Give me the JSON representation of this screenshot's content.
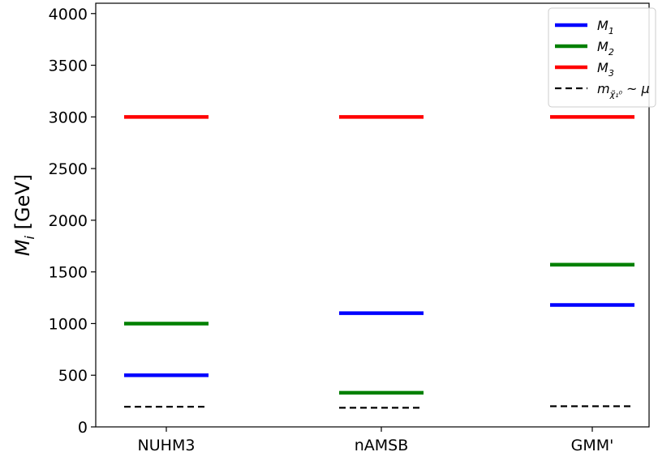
{
  "chart_data": {
    "type": "line",
    "ylabel": "M_i [GeV]",
    "ylabel_parts": {
      "symbol": "M",
      "subscript": "i",
      "unit": " [GeV]"
    },
    "ylim": [
      0,
      4100
    ],
    "yticks": [
      0,
      500,
      1000,
      1500,
      2000,
      2500,
      3000,
      3500,
      4000
    ],
    "ytick_labels": [
      "0",
      "500",
      "1000",
      "1500",
      "2000",
      "2500",
      "3000",
      "3500",
      "4000"
    ],
    "categories": [
      "NUHM3",
      "nAMSB",
      "GMM'"
    ],
    "grid": false,
    "legend_position": "top-right",
    "series": [
      {
        "name": "M_1",
        "label_symbol": "M",
        "label_sub": "1",
        "color": "#0000ff",
        "style": "solid",
        "values": [
          500,
          1100,
          1180
        ]
      },
      {
        "name": "M_2",
        "label_symbol": "M",
        "label_sub": "2",
        "color": "#008000",
        "style": "solid",
        "values": [
          1000,
          330,
          1570
        ]
      },
      {
        "name": "M_3",
        "label_symbol": "M",
        "label_sub": "3",
        "color": "#ff0000",
        "style": "solid",
        "values": [
          3000,
          3000,
          3000
        ]
      },
      {
        "name": "m_chi10 ~ mu",
        "label_symbol": "m",
        "label_sub": "χ̃₁⁰",
        "label_tail": " ~ μ",
        "color": "#000000",
        "style": "dashed",
        "values": [
          195,
          185,
          200
        ]
      }
    ]
  }
}
